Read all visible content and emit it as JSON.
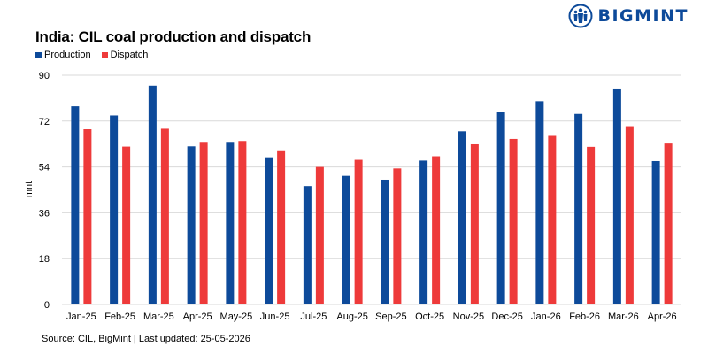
{
  "brand": {
    "name": "BIGMINT",
    "logo_icon": "bigmint-people-icon"
  },
  "source_note": "Source: CIL, BigMint | Last updated: 25-05-2026",
  "colors": {
    "production": "#0d4a9a",
    "dispatch": "#ee3a3a",
    "grid": "#d9d9d9"
  },
  "chart_data": {
    "type": "bar",
    "title": "India: CIL coal production and dispatch",
    "xlabel": "",
    "ylabel": "mnt",
    "ylim": [
      0,
      90
    ],
    "yticks": [
      0,
      18,
      36,
      54,
      72,
      90
    ],
    "grid": true,
    "legend": "top-left",
    "categories": [
      "Jan-25",
      "Feb-25",
      "Mar-25",
      "Apr-25",
      "May-25",
      "Jun-25",
      "Jul-25",
      "Aug-25",
      "Sep-25",
      "Oct-25",
      "Nov-25",
      "Dec-25",
      "Jan-26",
      "Feb-26",
      "Mar-26",
      "Apr-26"
    ],
    "series": [
      {
        "name": "Production",
        "values": [
          77.8,
          74.2,
          85.9,
          62.1,
          63.5,
          57.8,
          46.5,
          50.5,
          49.0,
          56.5,
          68.0,
          75.6,
          79.8,
          74.8,
          84.8,
          56.3
        ]
      },
      {
        "name": "Dispatch",
        "values": [
          68.8,
          62.0,
          69.0,
          63.5,
          64.2,
          60.2,
          54.0,
          56.8,
          53.4,
          58.2,
          62.9,
          65.0,
          66.2,
          61.9,
          70.0,
          63.2
        ]
      }
    ]
  }
}
